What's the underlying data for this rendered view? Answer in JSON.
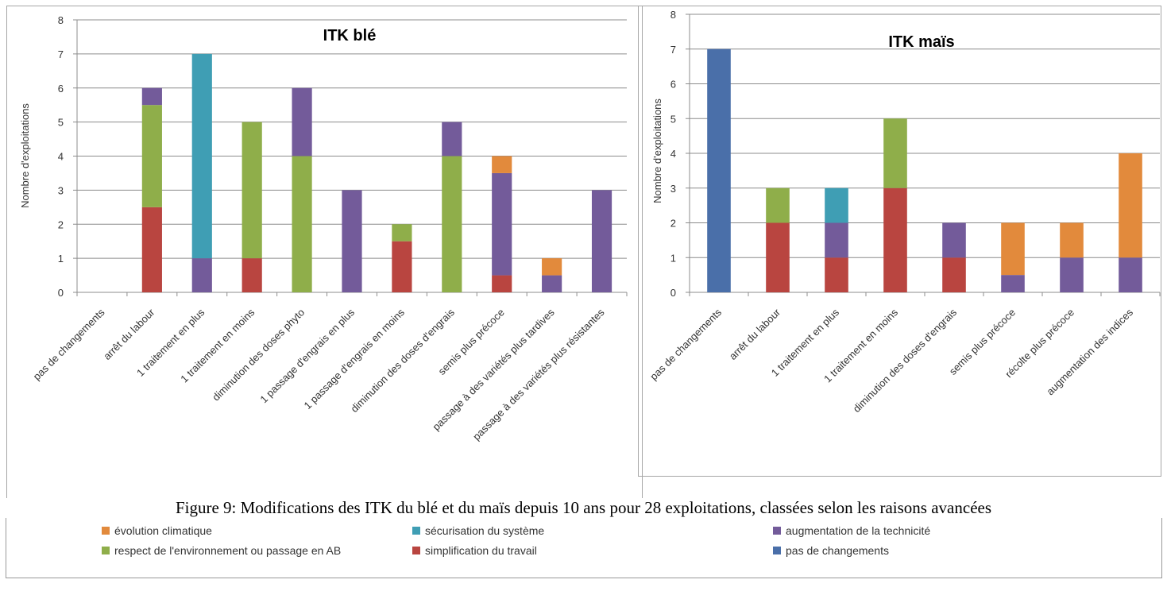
{
  "caption": "Figure 9: Modifications des ITK du blé et du maïs depuis 10 ans pour 28 exploitations, classées selon les raisons avancées",
  "legend": {
    "items": [
      {
        "key": "climat",
        "label": "évolution climatique"
      },
      {
        "key": "secu",
        "label": "sécurisation du système"
      },
      {
        "key": "tech",
        "label": "augmentation de la technicité"
      },
      {
        "key": "env",
        "label": "respect de l'environnement ou passage en AB"
      },
      {
        "key": "simpl",
        "label": "simplification du travail"
      },
      {
        "key": "none",
        "label": "pas de changements"
      }
    ]
  },
  "colors": {
    "none": "#4a6fa9",
    "simpl": "#b94540",
    "env": "#8fae4a",
    "tech": "#735b9a",
    "secu": "#3f9eb4",
    "climat": "#e28a3c"
  },
  "chart_data": [
    {
      "type": "bar",
      "stacked": true,
      "title": "ITK blé",
      "ylabel": "Nombre d'exploitations",
      "ylim": [
        0,
        8
      ],
      "yticks": [
        0,
        1,
        2,
        3,
        4,
        5,
        6,
        7,
        8
      ],
      "grid": true,
      "categories": [
        "pas de changements",
        "arrêt du labour",
        "1 traitement en plus",
        "1 traitement en moins",
        "diminution des doses phyto",
        "1 passage d'engrais en plus",
        "1 passage d'engrais en moins",
        "diminution des doses d'engrais",
        "semis plus précoce",
        "passage à des variétés plus tardives",
        "passage à des variétés plus résistantes"
      ],
      "series": [
        {
          "name": "pas de changements",
          "key": "none",
          "values": [
            0,
            0,
            0,
            0,
            0,
            0,
            0,
            0,
            0,
            0,
            0
          ]
        },
        {
          "name": "simplification du travail",
          "key": "simpl",
          "values": [
            0,
            2.5,
            0,
            1,
            0,
            0,
            1.5,
            0,
            0.5,
            0,
            0
          ]
        },
        {
          "name": "respect de l'environnement ou passage en AB",
          "key": "env",
          "values": [
            0,
            3,
            0,
            4,
            4,
            0,
            0.5,
            4,
            0,
            0,
            0
          ]
        },
        {
          "name": "augmentation de la technicité",
          "key": "tech",
          "values": [
            0,
            0.5,
            1,
            0,
            2,
            3,
            0,
            1,
            3,
            0.5,
            3
          ]
        },
        {
          "name": "sécurisation du système",
          "key": "secu",
          "values": [
            0,
            0,
            6,
            0,
            0,
            0,
            0,
            0,
            0,
            0,
            0
          ]
        },
        {
          "name": "évolution climatique",
          "key": "climat",
          "values": [
            0,
            0,
            0,
            0,
            0,
            0,
            0,
            0,
            0.5,
            0.5,
            0
          ]
        }
      ]
    },
    {
      "type": "bar",
      "stacked": true,
      "title": "ITK maïs",
      "ylabel": "Nombre d'exploitations",
      "ylim": [
        0,
        8
      ],
      "yticks": [
        0,
        1,
        2,
        3,
        4,
        5,
        6,
        7,
        8
      ],
      "grid": true,
      "categories": [
        "pas de changements",
        "arrêt du labour",
        "1 traitement en plus",
        "1 traitement en moins",
        "diminution des doses d'engrais",
        "semis plus précoce",
        "récolte plus précoce",
        "augmentation des indices"
      ],
      "series": [
        {
          "name": "pas de changements",
          "key": "none",
          "values": [
            7,
            0,
            0,
            0,
            0,
            0,
            0,
            0
          ]
        },
        {
          "name": "simplification du travail",
          "key": "simpl",
          "values": [
            0,
            2,
            1,
            3,
            1,
            0,
            0,
            0
          ]
        },
        {
          "name": "respect de l'environnement ou passage en AB",
          "key": "env",
          "values": [
            0,
            1,
            0,
            2,
            0,
            0,
            0,
            0
          ]
        },
        {
          "name": "augmentation de la technicité",
          "key": "tech",
          "values": [
            0,
            0,
            1,
            0,
            1,
            0.5,
            1,
            1
          ]
        },
        {
          "name": "sécurisation du système",
          "key": "secu",
          "values": [
            0,
            0,
            1,
            0,
            0,
            0,
            0,
            0
          ]
        },
        {
          "name": "évolution climatique",
          "key": "climat",
          "values": [
            0,
            0,
            0,
            0,
            0,
            1.5,
            1,
            3
          ]
        }
      ]
    }
  ]
}
